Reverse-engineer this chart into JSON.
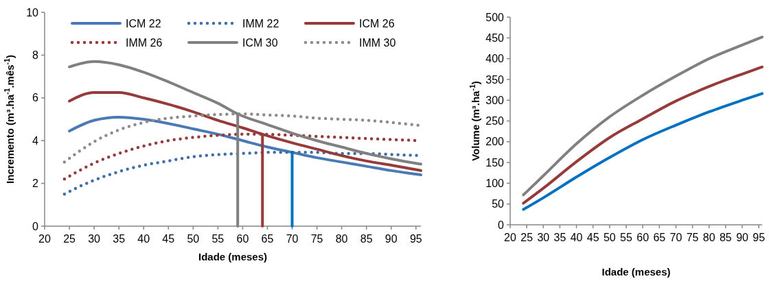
{
  "chart_data": [
    {
      "type": "line",
      "xlabel": "Idade (meses)",
      "ylabel": "Incremento (m³.ha$^{-1}$.mês$^{-1}$)",
      "xlim": [
        20,
        96
      ],
      "ylim": [
        0,
        10
      ],
      "xticks": [
        20,
        25,
        30,
        35,
        40,
        45,
        50,
        55,
        60,
        65,
        70,
        75,
        80,
        85,
        90,
        95
      ],
      "yticks": [
        0,
        2,
        4,
        6,
        8,
        10
      ],
      "grid": false,
      "legend": "top",
      "series": [
        {
          "name": "ICM 22",
          "color": "#4a7ab5",
          "line_style": "solid",
          "x": [
            25,
            30,
            35,
            40,
            45,
            50,
            55,
            60,
            65,
            70,
            75,
            80,
            85,
            90,
            96
          ],
          "values": [
            4.45,
            4.95,
            5.1,
            5.0,
            4.8,
            4.55,
            4.3,
            4.0,
            3.7,
            3.45,
            3.2,
            3.0,
            2.8,
            2.6,
            2.4
          ]
        },
        {
          "name": "IMM 22",
          "color": "#3f6ea8",
          "line_style": "dotted",
          "x": [
            24,
            27,
            30,
            35,
            40,
            45,
            50,
            55,
            60,
            65,
            70,
            75,
            80,
            85,
            90,
            96
          ],
          "values": [
            1.5,
            1.85,
            2.15,
            2.55,
            2.85,
            3.05,
            3.25,
            3.35,
            3.4,
            3.45,
            3.45,
            3.45,
            3.4,
            3.4,
            3.35,
            3.3
          ]
        },
        {
          "name": "ICM 26",
          "color": "#963a3a",
          "line_style": "solid",
          "x": [
            25,
            30,
            35,
            40,
            45,
            50,
            55,
            60,
            64,
            70,
            75,
            80,
            85,
            90,
            96
          ],
          "values": [
            5.85,
            6.25,
            6.25,
            6.0,
            5.7,
            5.35,
            4.95,
            4.6,
            4.3,
            3.9,
            3.6,
            3.3,
            3.05,
            2.85,
            2.6
          ]
        },
        {
          "name": "IMM 26",
          "color": "#963a3a",
          "line_style": "dotted",
          "x": [
            24,
            27,
            30,
            35,
            40,
            45,
            50,
            55,
            60,
            64,
            70,
            75,
            80,
            85,
            90,
            96
          ],
          "values": [
            2.2,
            2.6,
            2.95,
            3.4,
            3.75,
            4.0,
            4.15,
            4.25,
            4.3,
            4.3,
            4.25,
            4.2,
            4.15,
            4.1,
            4.05,
            4.0
          ]
        },
        {
          "name": "ICM 30",
          "color": "#808080",
          "line_style": "solid",
          "x": [
            25,
            30,
            35,
            40,
            45,
            50,
            55,
            59,
            65,
            70,
            75,
            80,
            85,
            90,
            96
          ],
          "values": [
            7.45,
            7.7,
            7.55,
            7.2,
            6.75,
            6.25,
            5.75,
            5.25,
            4.75,
            4.35,
            4.0,
            3.7,
            3.4,
            3.15,
            2.9
          ]
        },
        {
          "name": "IMM 30",
          "color": "#8c8c8c",
          "line_style": "dotted",
          "x": [
            24,
            27,
            30,
            35,
            40,
            45,
            50,
            55,
            60,
            65,
            70,
            75,
            80,
            85,
            90,
            96
          ],
          "values": [
            3.0,
            3.5,
            3.95,
            4.5,
            4.85,
            5.05,
            5.15,
            5.22,
            5.25,
            5.2,
            5.15,
            5.05,
            5.0,
            4.95,
            4.85,
            4.7
          ]
        },
        {
          "color": "#808080",
          "line_style": "solid",
          "x": [
            59,
            59
          ],
          "values": [
            0,
            5.25
          ]
        },
        {
          "color": "#963a3a",
          "line_style": "solid",
          "x": [
            64,
            64
          ],
          "values": [
            0,
            4.3
          ]
        },
        {
          "color": "#0070c0",
          "line_style": "solid",
          "x": [
            70,
            70
          ],
          "values": [
            0,
            3.45
          ]
        }
      ]
    },
    {
      "type": "line",
      "xlabel": "Idade (meses)",
      "ylabel": "Volume (m³.ha$^{-1}$)",
      "xlim": [
        20,
        96
      ],
      "ylim": [
        0,
        500
      ],
      "xticks": [
        20,
        25,
        30,
        35,
        40,
        45,
        50,
        55,
        60,
        65,
        70,
        75,
        80,
        85,
        90,
        95
      ],
      "yticks": [
        0,
        50,
        100,
        150,
        200,
        250,
        300,
        350,
        400,
        450,
        500
      ],
      "grid": false,
      "series": [
        {
          "color": "#0070c0",
          "line_style": "solid",
          "x": [
            24,
            30,
            40,
            50,
            60,
            70,
            80,
            90,
            96
          ],
          "values": [
            37,
            65,
            115,
            162,
            205,
            240,
            272,
            300,
            316
          ]
        },
        {
          "color": "#963a3a",
          "line_style": "solid",
          "x": [
            24,
            30,
            40,
            50,
            60,
            70,
            80,
            90,
            96
          ],
          "values": [
            52,
            88,
            152,
            210,
            255,
            298,
            333,
            363,
            380
          ]
        },
        {
          "color": "#808080",
          "line_style": "solid",
          "x": [
            24,
            30,
            40,
            50,
            60,
            70,
            80,
            90,
            96
          ],
          "values": [
            72,
            118,
            195,
            260,
            312,
            358,
            400,
            433,
            452
          ]
        }
      ]
    }
  ]
}
